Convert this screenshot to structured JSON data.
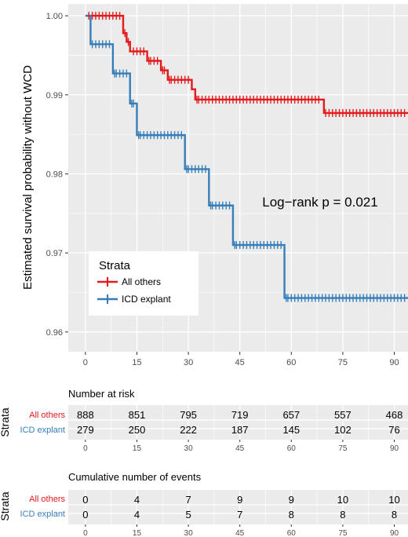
{
  "colors": {
    "all_others": "#e41a1c",
    "icd_explant": "#377eb8",
    "panel_bg": "#ebebeb",
    "grid": "#ffffff",
    "tick_text": "#4d4d4d"
  },
  "chart_data": {
    "type": "line",
    "subtype": "kaplan-meier step survival",
    "ylabel": "Estimated survival probability without WCD",
    "xlim": [
      -5,
      94
    ],
    "ylim": [
      0.9575,
      1.0015
    ],
    "x_ticks": [
      0,
      15,
      30,
      45,
      60,
      75,
      90
    ],
    "y_ticks": [
      0.96,
      0.97,
      0.98,
      0.99,
      1.0
    ],
    "x_tick_labels": [
      "0",
      "15",
      "30",
      "45",
      "60",
      "75",
      "90"
    ],
    "y_tick_labels": [
      "0.96",
      "0.97",
      "0.98",
      "0.99",
      "1.00"
    ],
    "annotation": "Log−rank  p = 0.021",
    "legend": {
      "title": "Strata",
      "position": "left-middle inside plot"
    },
    "series": [
      {
        "name": "All others",
        "color": "#e41a1c",
        "steps": [
          [
            0,
            1.0
          ],
          [
            11,
            0.9978
          ],
          [
            12,
            0.9967
          ],
          [
            13,
            0.9955
          ],
          [
            18,
            0.9943
          ],
          [
            22,
            0.9931
          ],
          [
            24,
            0.9919
          ],
          [
            31,
            0.9907
          ],
          [
            32,
            0.9894
          ],
          [
            69.5,
            0.9877
          ],
          [
            94,
            0.9877
          ]
        ],
        "censor_times": [
          1,
          2,
          3,
          4,
          5,
          6,
          7,
          8,
          9,
          10,
          11.5,
          12.5,
          14,
          15,
          16,
          17,
          18.5,
          19,
          20,
          21,
          22.5,
          23,
          24.5,
          25,
          26,
          27,
          28,
          29,
          30,
          32.5,
          33,
          34,
          35,
          36,
          37,
          38,
          39,
          40,
          41,
          42,
          43,
          44,
          45,
          46,
          47,
          48,
          49,
          50,
          51,
          52,
          53,
          54,
          55,
          56,
          57,
          58,
          59,
          60,
          61,
          62,
          63,
          64,
          65,
          66,
          67,
          68,
          70,
          71,
          72,
          73,
          74,
          75,
          76,
          77,
          78,
          79,
          80,
          81,
          82,
          83,
          84,
          85,
          86,
          87,
          88,
          89,
          90,
          91,
          92,
          93
        ]
      },
      {
        "name": "ICD explant",
        "color": "#377eb8",
        "steps": [
          [
            0,
            1.0
          ],
          [
            1.5,
            0.9964
          ],
          [
            8,
            0.9927
          ],
          [
            13,
            0.9889
          ],
          [
            15,
            0.9849
          ],
          [
            29,
            0.9806
          ],
          [
            36,
            0.976
          ],
          [
            43,
            0.971
          ],
          [
            58,
            0.9643
          ],
          [
            94,
            0.9643
          ]
        ],
        "censor_times": [
          2,
          3,
          4,
          5,
          6,
          7,
          8.5,
          9,
          10,
          11,
          12,
          13.5,
          14,
          15.5,
          16,
          17,
          18,
          19,
          20,
          21,
          22,
          23,
          24,
          25,
          26,
          27,
          28,
          29.5,
          30,
          31,
          32,
          33,
          34,
          35,
          36.5,
          37,
          38,
          39,
          40,
          41,
          42,
          43.5,
          44,
          45,
          46,
          47,
          48,
          49,
          50,
          51,
          52,
          53,
          54,
          55,
          56,
          57,
          58.5,
          59,
          60,
          61,
          62,
          63,
          64,
          65,
          66,
          67,
          68,
          69,
          70,
          71,
          72,
          73,
          74,
          75,
          76,
          77,
          78,
          79,
          80,
          81,
          82,
          83,
          84,
          85,
          86,
          87,
          88,
          89,
          90,
          91,
          92,
          93
        ]
      }
    ],
    "risk_table": {
      "title": "Number at risk",
      "ylabel": "Strata",
      "times": [
        "0",
        "15",
        "30",
        "45",
        "60",
        "75",
        "90"
      ],
      "rows": [
        {
          "name": "All others",
          "values": [
            "888",
            "851",
            "795",
            "719",
            "657",
            "557",
            "468"
          ]
        },
        {
          "name": "ICD explant",
          "values": [
            "279",
            "250",
            "222",
            "187",
            "145",
            "102",
            "76"
          ]
        }
      ]
    },
    "events_table": {
      "title": "Cumulative number of events",
      "ylabel": "Strata",
      "times": [
        "0",
        "15",
        "30",
        "45",
        "60",
        "75",
        "90"
      ],
      "rows": [
        {
          "name": "All others",
          "values": [
            "0",
            "4",
            "7",
            "9",
            "9",
            "10",
            "10"
          ]
        },
        {
          "name": "ICD explant",
          "values": [
            "0",
            "4",
            "5",
            "7",
            "8",
            "8",
            "8"
          ]
        }
      ]
    }
  }
}
